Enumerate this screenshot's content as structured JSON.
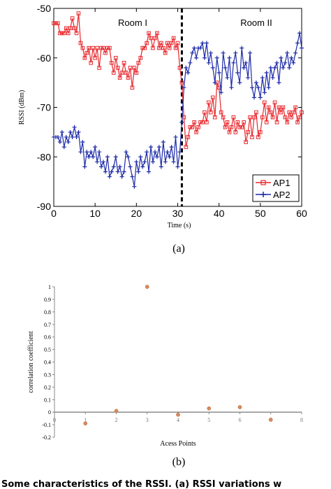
{
  "panel_labels": {
    "a": "(a)",
    "b": "(b)"
  },
  "caption": "Some characteristics of the RSSI. (a) RSSI variations w",
  "chart_data": [
    {
      "type": "line",
      "xlabel": "Time (s)",
      "ylabel": "RSSI (dBm)",
      "xlim": [
        0,
        60
      ],
      "ylim": [
        -90,
        -50
      ],
      "xticks": [
        "0",
        "10",
        "20",
        "30",
        "40",
        "50",
        "60"
      ],
      "yticks": [
        "-90",
        "-80",
        "-70",
        "-60",
        "-50"
      ],
      "annotations": [
        "Room I",
        "Room II"
      ],
      "divider_x": 31,
      "legend_position": "bottom-right",
      "series": [
        {
          "name": "AP1",
          "color": "#e8262b",
          "marker": "square",
          "x": [
            0,
            0.5,
            1,
            1.5,
            2,
            2.5,
            3,
            3.5,
            4,
            4.5,
            5,
            5.5,
            6,
            6.5,
            7,
            7.5,
            8,
            8.5,
            9,
            9.5,
            10,
            10.5,
            11,
            11.5,
            12,
            12.5,
            13,
            13.5,
            14,
            14.5,
            15,
            15.5,
            16,
            16.5,
            17,
            17.5,
            18,
            18.5,
            19,
            19.5,
            20,
            20.5,
            21,
            21.5,
            22,
            22.5,
            23,
            23.5,
            24,
            24.5,
            25,
            25.5,
            26,
            26.5,
            27,
            27.5,
            28,
            28.5,
            29,
            29.5,
            30,
            30.5,
            31,
            31.5,
            32,
            32.5,
            33,
            33.5,
            34,
            34.5,
            35,
            35.5,
            36,
            36.5,
            37,
            37.5,
            38,
            38.5,
            39,
            39.5,
            40,
            40.5,
            41,
            41.5,
            42,
            42.5,
            43,
            43.5,
            44,
            44.5,
            45,
            45.5,
            46,
            46.5,
            47,
            47.5,
            48,
            48.5,
            49,
            49.5,
            50,
            50.5,
            51,
            51.5,
            52,
            52.5,
            53,
            53.5,
            54,
            54.5,
            55,
            55.5,
            56,
            56.5,
            57,
            57.5,
            58,
            58.5,
            59,
            59.5,
            60
          ],
          "values": [
            -53,
            -53,
            -53,
            -55,
            -55,
            -55,
            -54,
            -55,
            -54,
            -52,
            -54,
            -55,
            -51,
            -57,
            -58,
            -60,
            -59,
            -58,
            -61,
            -58,
            -60,
            -58,
            -62,
            -58,
            -58,
            -59,
            -58,
            -58,
            -61,
            -63,
            -60,
            -62,
            -64,
            -63,
            -61,
            -63,
            -64,
            -62,
            -66,
            -62,
            -63,
            -61,
            -60,
            -58,
            -58,
            -57,
            -55,
            -56,
            -58,
            -56,
            -55,
            -58,
            -57,
            -58,
            -59,
            -57,
            -58,
            -57,
            -56,
            -58,
            -57,
            -62,
            -65,
            -72,
            -78,
            -76,
            -74,
            -74,
            -73,
            -75,
            -74,
            -73,
            -73,
            -71,
            -73,
            -69,
            -71,
            -68,
            -72,
            -65,
            -66,
            -71,
            -72,
            -74,
            -73,
            -75,
            -74,
            -72,
            -75,
            -73,
            -74,
            -74,
            -73,
            -77,
            -75,
            -72,
            -76,
            -72,
            -71,
            -76,
            -75,
            -72,
            -69,
            -73,
            -70,
            -71,
            -72,
            -69,
            -73,
            -70,
            -71,
            -70,
            -72,
            -73,
            -71,
            -72,
            -71,
            -70,
            -73,
            -72,
            -71
          ]
        },
        {
          "name": "AP2",
          "color": "#1c2aa8",
          "marker": "plus",
          "x": [
            0,
            0.5,
            1,
            1.5,
            2,
            2.5,
            3,
            3.5,
            4,
            4.5,
            5,
            5.5,
            6,
            6.5,
            7,
            7.5,
            8,
            8.5,
            9,
            9.5,
            10,
            10.5,
            11,
            11.5,
            12,
            12.5,
            13,
            13.5,
            14,
            14.5,
            15,
            15.5,
            16,
            16.5,
            17,
            17.5,
            18,
            18.5,
            19,
            19.5,
            20,
            20.5,
            21,
            21.5,
            22,
            22.5,
            23,
            23.5,
            24,
            24.5,
            25,
            25.5,
            26,
            26.5,
            27,
            27.5,
            28,
            28.5,
            29,
            29.5,
            30,
            30.5,
            31,
            31.5,
            32,
            32.5,
            33,
            33.5,
            34,
            34.5,
            35,
            35.5,
            36,
            36.5,
            37,
            37.5,
            38,
            38.5,
            39,
            39.5,
            40,
            40.5,
            41,
            41.5,
            42,
            42.5,
            43,
            43.5,
            44,
            44.5,
            45,
            45.5,
            46,
            46.5,
            47,
            47.5,
            48,
            48.5,
            49,
            49.5,
            50,
            50.5,
            51,
            51.5,
            52,
            52.5,
            53,
            53.5,
            54,
            54.5,
            55,
            55.5,
            56,
            56.5,
            57,
            57.5,
            58,
            58.5,
            59,
            59.5,
            60
          ],
          "values": [
            -76,
            -76,
            -76,
            -77,
            -75,
            -78,
            -76,
            -77,
            -75,
            -76,
            -74,
            -76,
            -75,
            -79,
            -77,
            -82,
            -79,
            -80,
            -79,
            -80,
            -78,
            -81,
            -79,
            -82,
            -81,
            -83,
            -80,
            -84,
            -83,
            -82,
            -80,
            -83,
            -82,
            -84,
            -83,
            -79,
            -80,
            -82,
            -84,
            -86,
            -81,
            -83,
            -80,
            -82,
            -81,
            -79,
            -83,
            -78,
            -81,
            -79,
            -80,
            -78,
            -82,
            -77,
            -81,
            -79,
            -80,
            -78,
            -81,
            -76,
            -82,
            -79,
            -73,
            -66,
            -62,
            -63,
            -61,
            -59,
            -58,
            -60,
            -58,
            -58,
            -57,
            -60,
            -57,
            -61,
            -59,
            -62,
            -65,
            -60,
            -63,
            -67,
            -59,
            -62,
            -64,
            -60,
            -66,
            -61,
            -59,
            -63,
            -65,
            -58,
            -62,
            -61,
            -64,
            -59,
            -66,
            -68,
            -65,
            -66,
            -68,
            -64,
            -67,
            -63,
            -66,
            -62,
            -64,
            -62,
            -61,
            -65,
            -60,
            -62,
            -61,
            -59,
            -62,
            -60,
            -61,
            -59,
            -57,
            -55,
            -58
          ]
        }
      ]
    },
    {
      "type": "scatter",
      "xlabel": "Acess Points",
      "ylabel": "correlation coefficient",
      "xlim": [
        0,
        8
      ],
      "ylim": [
        -0.2,
        1
      ],
      "xticks": [
        "0",
        "1",
        "2",
        "3",
        "4",
        "5",
        "6",
        "7",
        "8"
      ],
      "yticks": [
        "-0.2",
        "-0.1",
        "0",
        "0.1",
        "0.2",
        "0.3",
        "0.4",
        "0.5",
        "0.6",
        "0.7",
        "0.8",
        "0.9",
        "1"
      ],
      "series": [
        {
          "color": "#d8895b",
          "x": [
            1,
            2,
            3,
            4,
            5,
            6,
            7
          ],
          "values": [
            -0.09,
            0.01,
            1.0,
            -0.02,
            0.03,
            0.04,
            -0.06
          ]
        }
      ]
    }
  ]
}
